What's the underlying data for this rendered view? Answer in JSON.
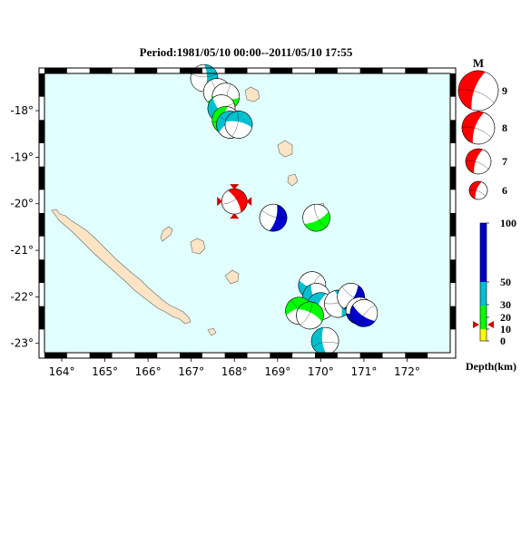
{
  "title": "Period:1981/05/10 00:00--2011/05/10 17:55",
  "lon_ticks": [
    "164°",
    "165°",
    "166°",
    "167°",
    "168°",
    "169°",
    "170°",
    "171°",
    "172°"
  ],
  "lat_ticks": [
    "-18°",
    "-19°",
    "-20°",
    "-21°",
    "-22°",
    "-23°"
  ],
  "extent": {
    "lon": [
      163.6,
      173.0
    ],
    "lat": [
      -17.2,
      -23.2
    ]
  },
  "colors": {
    "ocean": "#e0fffe",
    "land": "#fde4c4",
    "shallow": "#ffff00",
    "intermediate": "#00ff00",
    "mid": "#00c0d0",
    "deep": "#0000cc",
    "highlight": "#ff0000"
  },
  "magnitude_legend": {
    "heading": "M",
    "items": [
      {
        "label": "9",
        "mag": 9
      },
      {
        "label": "8",
        "mag": 8
      },
      {
        "label": "7",
        "mag": 7
      },
      {
        "label": "6",
        "mag": 6
      }
    ]
  },
  "depth_legend": {
    "label": "Depth(km)",
    "ticks": [
      "100",
      "50",
      "30",
      "20",
      "10",
      "0"
    ],
    "marker_depth": 15
  },
  "events": [
    {
      "lon": 167.3,
      "lat": -17.3,
      "color": "mid",
      "depth": 40
    },
    {
      "lon": 167.6,
      "lat": -17.6,
      "color": "intermediate",
      "depth": 25
    },
    {
      "lon": 167.8,
      "lat": -17.7,
      "color": "intermediate",
      "depth": 25
    },
    {
      "lon": 167.7,
      "lat": -17.95,
      "color": "mid",
      "depth": 40
    },
    {
      "lon": 167.8,
      "lat": -18.2,
      "color": "intermediate",
      "depth": 25
    },
    {
      "lon": 167.9,
      "lat": -18.3,
      "color": "mid",
      "depth": 40
    },
    {
      "lon": 168.1,
      "lat": -18.3,
      "color": "mid",
      "depth": 40
    },
    {
      "lon": 168.0,
      "lat": -19.95,
      "color": "highlight",
      "depth": 15,
      "highlight": true
    },
    {
      "lon": 168.9,
      "lat": -20.3,
      "color": "deep",
      "depth": 80
    },
    {
      "lon": 169.9,
      "lat": -20.3,
      "color": "intermediate",
      "depth": 25
    },
    {
      "lon": 169.8,
      "lat": -21.75,
      "color": "mid",
      "depth": 40
    },
    {
      "lon": 169.9,
      "lat": -22.0,
      "color": "mid",
      "depth": 40
    },
    {
      "lon": 170.0,
      "lat": -22.2,
      "color": "mid",
      "depth": 40
    },
    {
      "lon": 169.5,
      "lat": -22.3,
      "color": "intermediate",
      "depth": 25
    },
    {
      "lon": 169.75,
      "lat": -22.4,
      "color": "intermediate",
      "depth": 25
    },
    {
      "lon": 170.4,
      "lat": -22.15,
      "color": "mid",
      "depth": 40
    },
    {
      "lon": 170.7,
      "lat": -22.0,
      "color": "deep",
      "depth": 80
    },
    {
      "lon": 170.9,
      "lat": -22.3,
      "color": "deep",
      "depth": 80
    },
    {
      "lon": 171.0,
      "lat": -22.35,
      "color": "deep",
      "depth": 80
    },
    {
      "lon": 170.1,
      "lat": -22.95,
      "color": "mid",
      "depth": 40
    }
  ]
}
